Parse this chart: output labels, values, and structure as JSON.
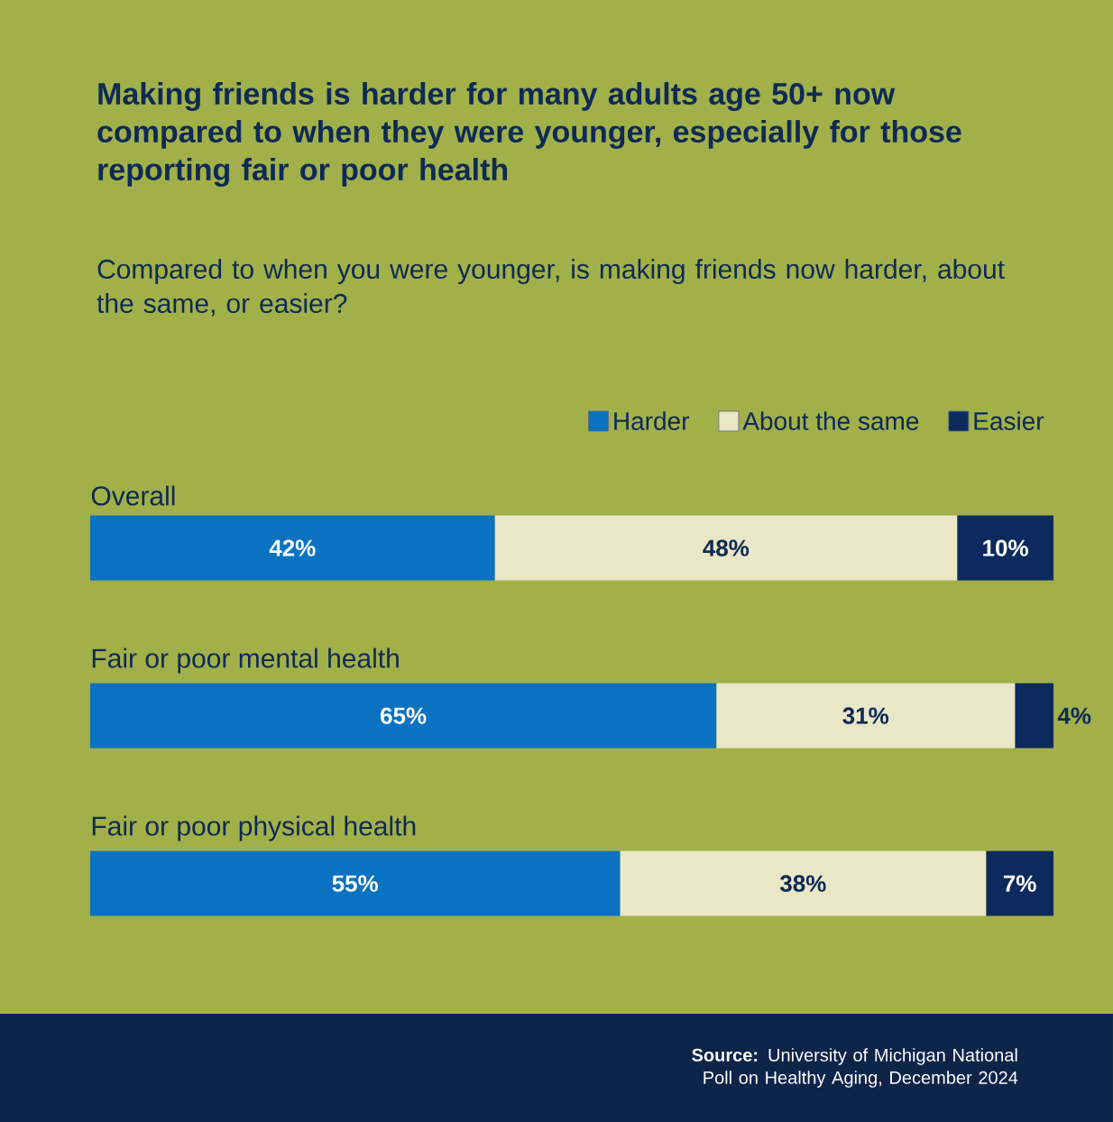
{
  "chart_data": {
    "type": "bar",
    "orientation": "horizontal",
    "stacked": true,
    "title": "Making friends is harder for many adults age 50+ now compared to when they were younger, especially for those reporting fair or poor health",
    "subtitle": "Compared to when you were younger, is making friends now harder, about the same, or easier?",
    "categories": [
      "Overall",
      "Fair or poor mental health",
      "Fair or poor physical health"
    ],
    "series": [
      {
        "name": "Harder",
        "color": "#0a72c0",
        "values": [
          42,
          65,
          55
        ],
        "value_labels": [
          "42%",
          "65%",
          "55%"
        ]
      },
      {
        "name": "About the same",
        "color": "#e9e7c6",
        "values": [
          48,
          31,
          38
        ],
        "value_labels": [
          "48%",
          "31%",
          "38%"
        ]
      },
      {
        "name": "Easier",
        "color": "#0d2a5e",
        "values": [
          10,
          4,
          7
        ],
        "value_labels": [
          "10%",
          "4%",
          "7%"
        ]
      }
    ],
    "legend": "top right",
    "annotations": [
      "**Source:** University of Michigan National Poll on Healthy Aging, December 2024"
    ]
  }
}
